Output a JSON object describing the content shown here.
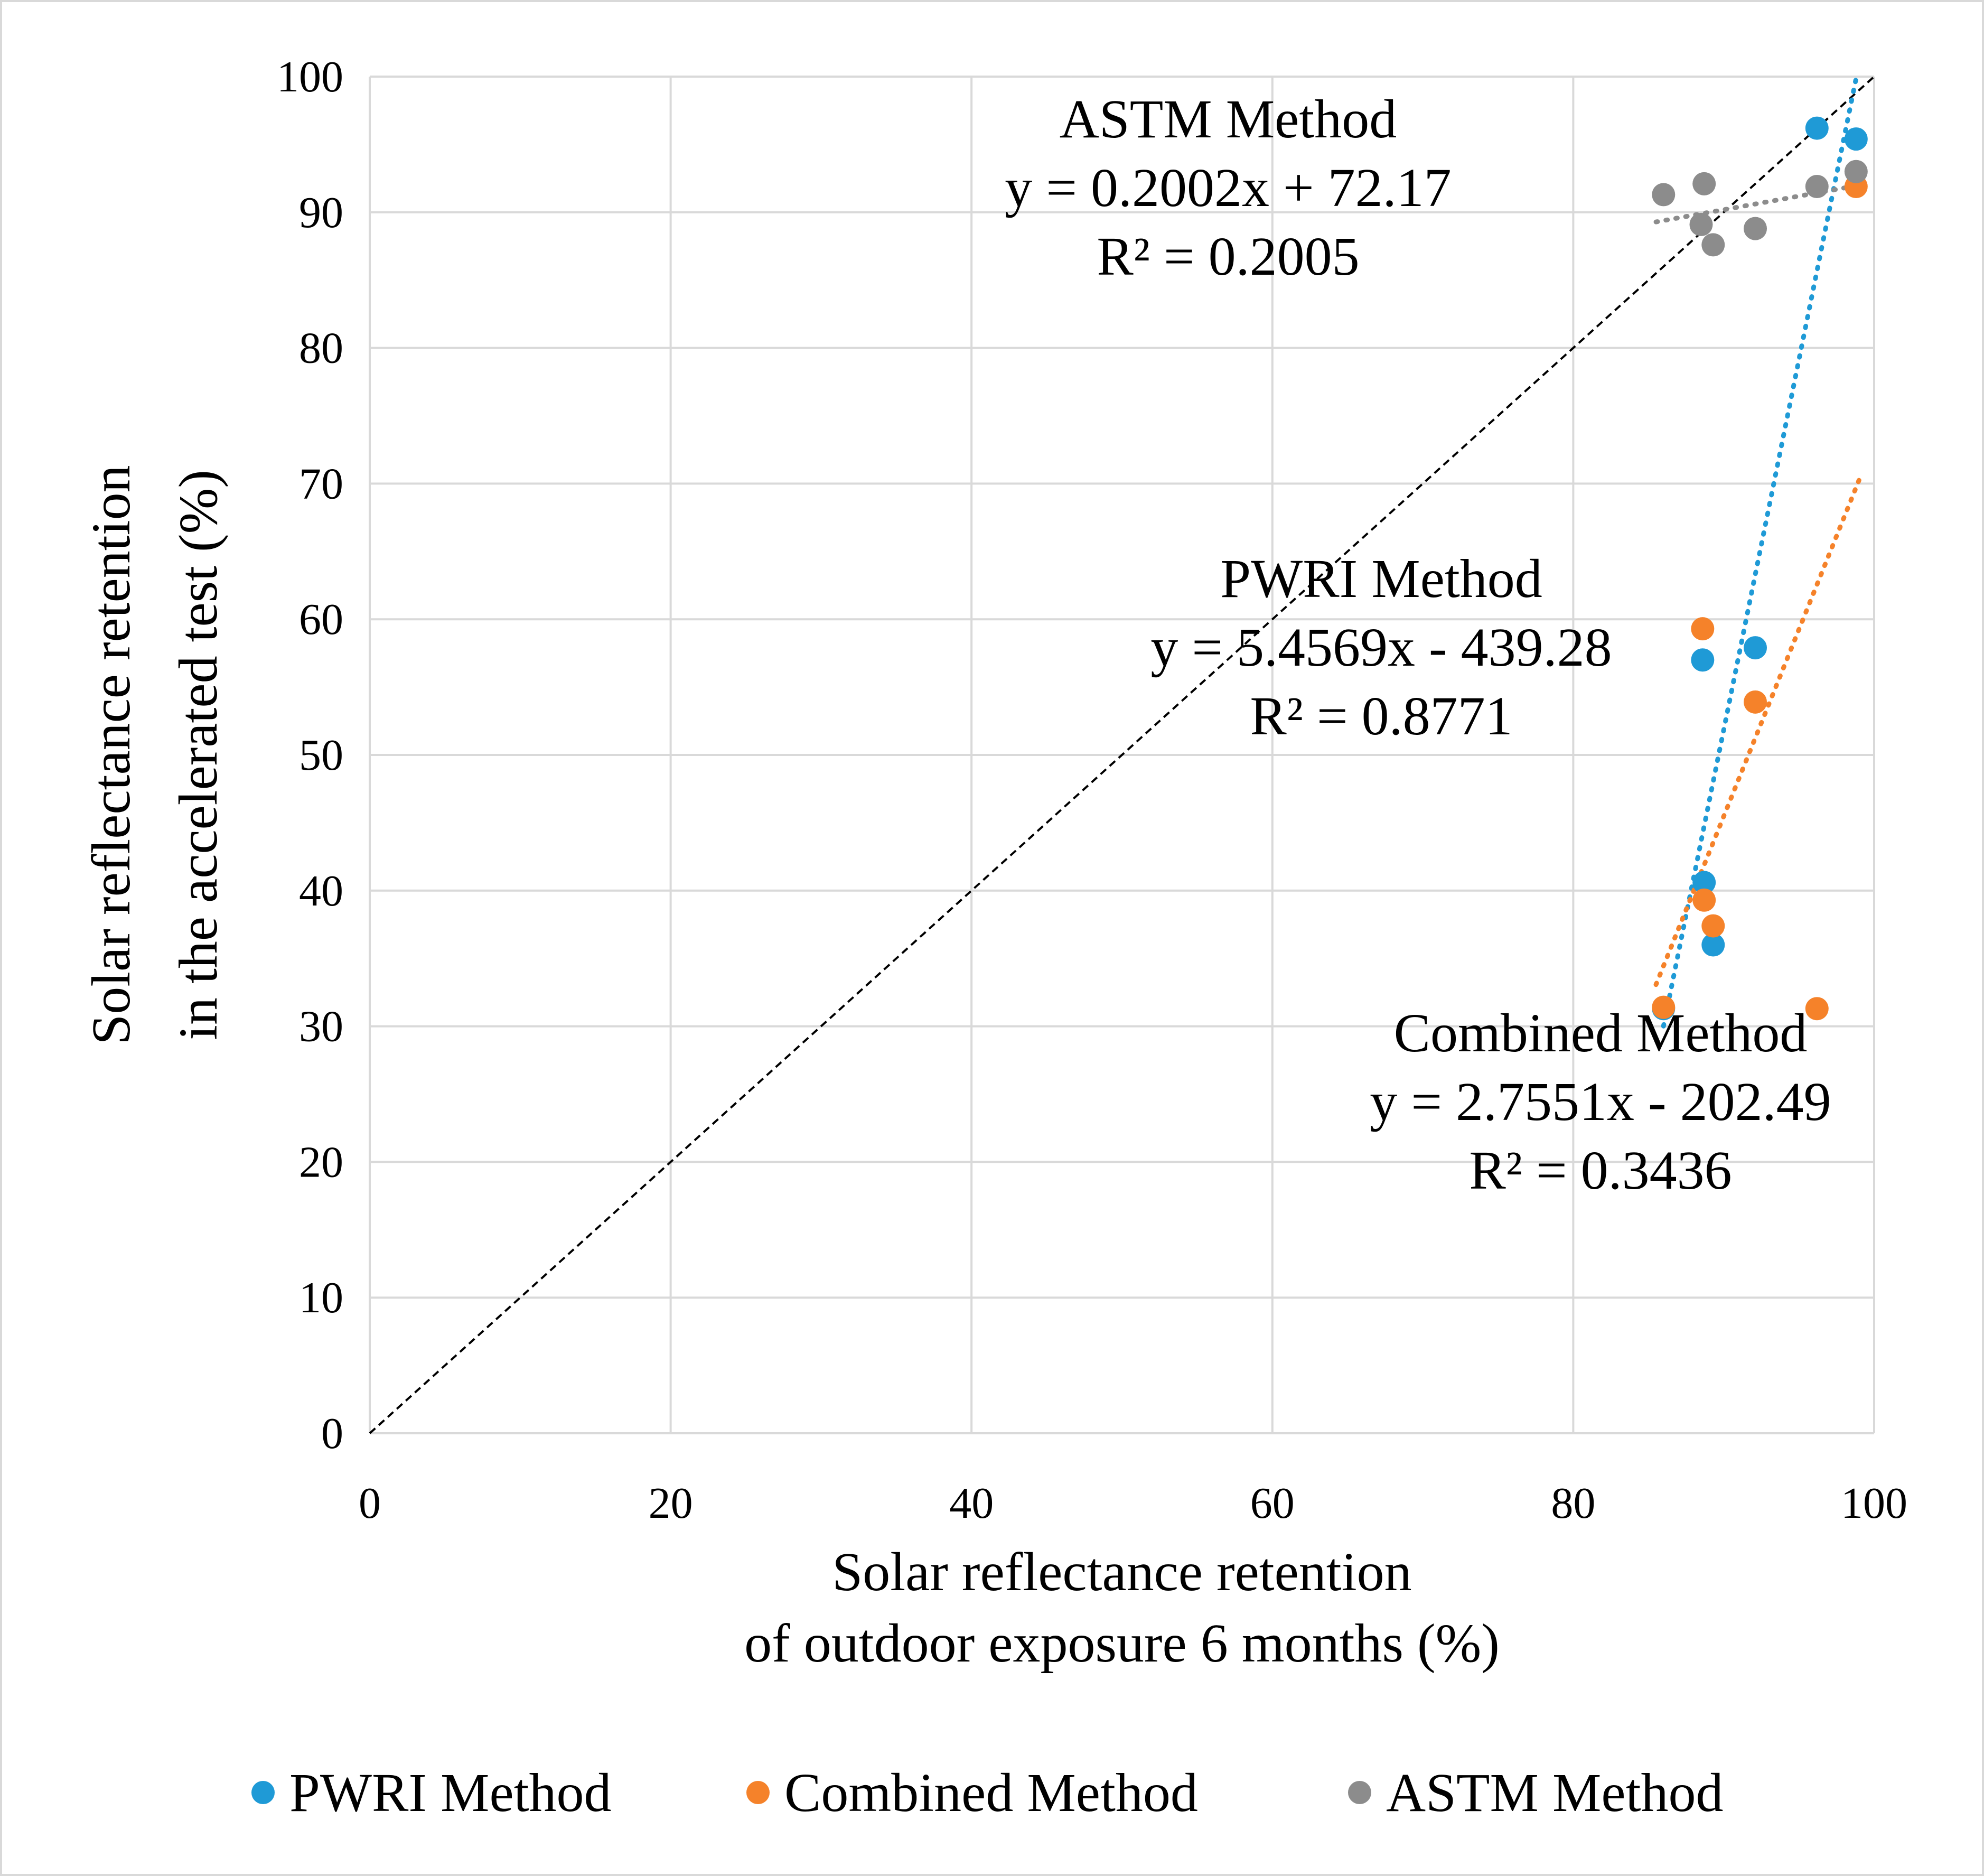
{
  "chart_data": {
    "type": "scatter",
    "xlabel": [
      "Solar reflectance retention",
      "of outdoor exposure 6 months (%)"
    ],
    "ylabel": [
      "Solar reflectance retention",
      "in the accelerated test (%)"
    ],
    "xlim": [
      0,
      100
    ],
    "ylim": [
      0,
      100
    ],
    "xticks": [
      0,
      20,
      40,
      60,
      80,
      100
    ],
    "yticks": [
      0,
      10,
      20,
      30,
      40,
      50,
      60,
      70,
      80,
      90,
      100
    ],
    "grid": true,
    "legend_position": "bottom",
    "reference_line": {
      "label": "y = x",
      "style": "dashed",
      "color": "#000000"
    },
    "series": [
      {
        "name": "PWRI Method",
        "color": "#1f9ad6",
        "points": [
          [
            96.2,
            96.2
          ],
          [
            98.8,
            95.4
          ],
          [
            88.6,
            57.0
          ],
          [
            92.1,
            57.9
          ],
          [
            88.7,
            40.6
          ],
          [
            89.3,
            36.0
          ],
          [
            86.0,
            31.3
          ]
        ],
        "trendline": {
          "slope": 5.4569,
          "intercept": -439.28,
          "x_range": [
            86.0,
            99.0
          ]
        },
        "equation": "y = 5.4569x - 439.28",
        "r2": "R² = 0.8771",
        "label": "PWRI Method"
      },
      {
        "name": "Combined Method",
        "color": "#f5822a",
        "points": [
          [
            88.6,
            59.3
          ],
          [
            92.1,
            53.9
          ],
          [
            88.7,
            39.3
          ],
          [
            89.3,
            37.4
          ],
          [
            86.0,
            31.4
          ],
          [
            96.2,
            31.3
          ],
          [
            98.8,
            91.9
          ]
        ],
        "trendline": {
          "slope": 2.7551,
          "intercept": -202.49,
          "x_range": [
            85.5,
            99.0
          ]
        },
        "equation": "y = 2.7551x - 202.49",
        "r2": "R² = 0.3436",
        "label": "Combined Method"
      },
      {
        "name": "ASTM Method",
        "color": "#8c8c8c",
        "points": [
          [
            86.0,
            91.3
          ],
          [
            88.7,
            92.1
          ],
          [
            88.5,
            89.1
          ],
          [
            89.3,
            87.6
          ],
          [
            92.1,
            88.8
          ],
          [
            96.2,
            91.9
          ],
          [
            98.8,
            93.0
          ]
        ],
        "trendline": {
          "slope": 0.2002,
          "intercept": 72.17,
          "x_range": [
            85.5,
            99.0
          ]
        },
        "equation": "y = 0.2002x + 72.17",
        "r2": "R² = 0.2005",
        "label": "ASTM Method"
      }
    ]
  }
}
